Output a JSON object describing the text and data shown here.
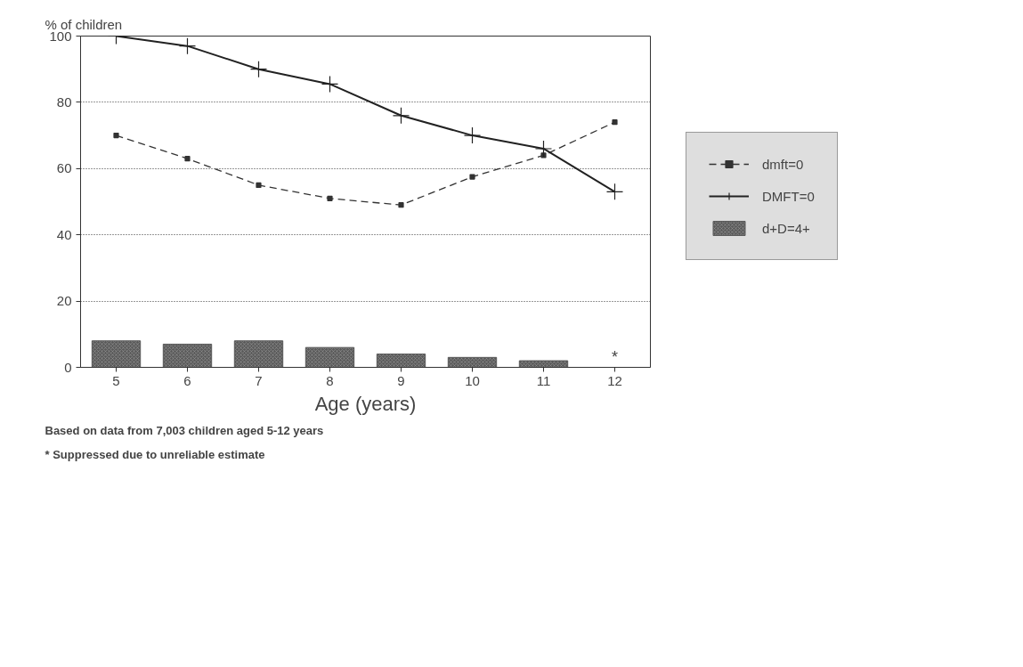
{
  "chart_data": {
    "type": "line",
    "xlabel": "Age (years)",
    "ylabel": "% of children",
    "categories": [
      "5",
      "6",
      "7",
      "8",
      "9",
      "10",
      "11",
      "12"
    ],
    "series": [
      {
        "name": "dmft=0",
        "color": "#333333",
        "marker": "square",
        "line_style": "dashed",
        "values": [
          70,
          63,
          55,
          51,
          49,
          57.5,
          64,
          74
        ]
      },
      {
        "name": "DMFT=0",
        "color": "#222222",
        "marker": "cross",
        "line_style": "solid",
        "values": [
          100,
          97,
          90,
          85.5,
          76,
          70,
          66,
          53
        ]
      },
      {
        "name": "d+D=4+",
        "type": "bar",
        "color": "#5a5a5a",
        "values": [
          8,
          7,
          8,
          6,
          4,
          3,
          2,
          null
        ]
      }
    ],
    "ylim": [
      0,
      100
    ],
    "yticks": [
      0,
      20,
      40,
      60,
      80,
      100
    ],
    "grid": "y",
    "legend": "right",
    "annotations": [
      "*",
      "Based on data from 7,003 children aged 5-12 years",
      "* Suppressed due to unreliable estimate"
    ]
  }
}
